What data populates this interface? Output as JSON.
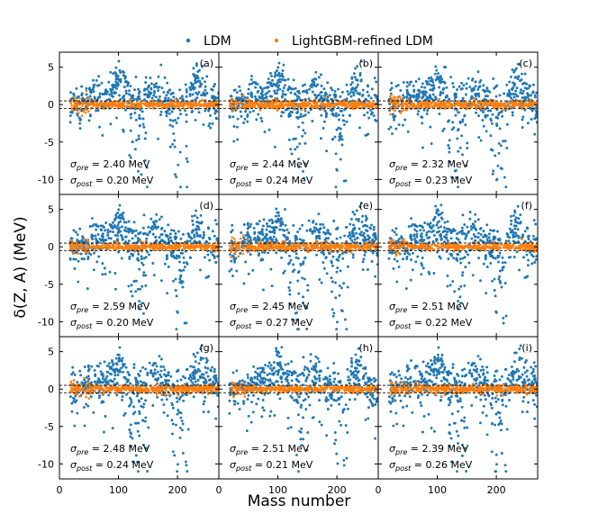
{
  "chart_data": {
    "type": "scatter",
    "xlabel": "Mass number",
    "ylabel": "δ(Z, A) (MeV)",
    "xlim": [
      0,
      270
    ],
    "ylim": [
      -12,
      7
    ],
    "xticks": [
      0,
      100,
      200
    ],
    "yticks": [
      5,
      0,
      -5,
      -10
    ],
    "legend": {
      "placement": "top-center",
      "entries": [
        {
          "name": "LDM",
          "color": "#1f77b4"
        },
        {
          "name": "LightGBM-refined LDM",
          "color": "#ff7f0e"
        }
      ]
    },
    "reference_lines": {
      "style": "dashed",
      "values": [
        -0.5,
        0.5
      ]
    },
    "panels": [
      {
        "label": "(a)",
        "sigma_pre": "2.40 MeV",
        "sigma_post": "0.20 MeV",
        "sigma_pre_val": 2.4,
        "sigma_post_val": 0.2
      },
      {
        "label": "(b)",
        "sigma_pre": "2.44 MeV",
        "sigma_post": "0.24 MeV",
        "sigma_pre_val": 2.44,
        "sigma_post_val": 0.24
      },
      {
        "label": "(c)",
        "sigma_pre": "2.32 MeV",
        "sigma_post": "0.23 MeV",
        "sigma_pre_val": 2.32,
        "sigma_post_val": 0.23
      },
      {
        "label": "(d)",
        "sigma_pre": "2.59 MeV",
        "sigma_post": "0.20 MeV",
        "sigma_pre_val": 2.59,
        "sigma_post_val": 0.2
      },
      {
        "label": "(e)",
        "sigma_pre": "2.45 MeV",
        "sigma_post": "0.27 MeV",
        "sigma_pre_val": 2.45,
        "sigma_post_val": 0.27
      },
      {
        "label": "(f)",
        "sigma_pre": "2.51 MeV",
        "sigma_post": "0.22 MeV",
        "sigma_pre_val": 2.51,
        "sigma_post_val": 0.22
      },
      {
        "label": "(g)",
        "sigma_pre": "2.48 MeV",
        "sigma_post": "0.24 MeV",
        "sigma_pre_val": 2.48,
        "sigma_post_val": 0.24
      },
      {
        "label": "(h)",
        "sigma_pre": "2.51 MeV",
        "sigma_post": "0.21 MeV",
        "sigma_pre_val": 2.51,
        "sigma_post_val": 0.21
      },
      {
        "label": "(i)",
        "sigma_pre": "2.39 MeV",
        "sigma_post": "0.26 MeV",
        "sigma_pre_val": 2.39,
        "sigma_post_val": 0.26
      }
    ]
  }
}
